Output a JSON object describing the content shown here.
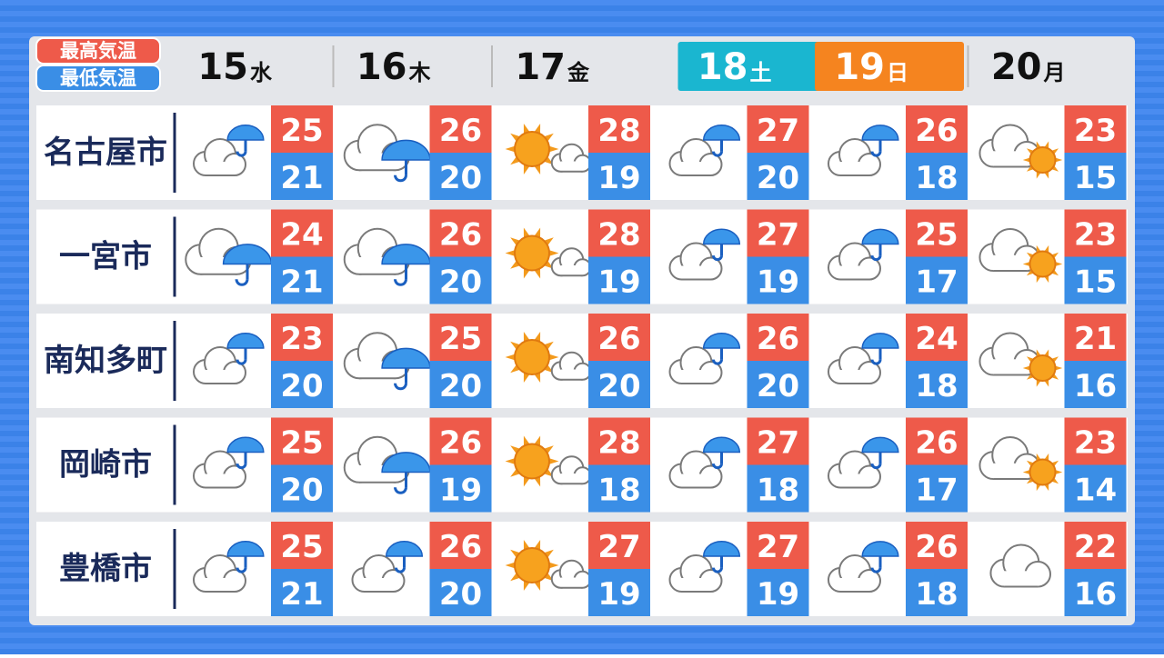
{
  "legend": {
    "high": "最高気温",
    "low": "最低気温"
  },
  "days": [
    {
      "date": "15",
      "weekday": "水"
    },
    {
      "date": "16",
      "weekday": "木"
    },
    {
      "date": "17",
      "weekday": "金"
    },
    {
      "date": "18",
      "weekday": "土"
    },
    {
      "date": "19",
      "weekday": "日"
    },
    {
      "date": "20",
      "weekday": "月"
    }
  ],
  "rows": [
    {
      "city": "名古屋市",
      "high": [
        25,
        26,
        28,
        27,
        26,
        23
      ],
      "low": [
        21,
        20,
        19,
        20,
        18,
        15
      ]
    },
    {
      "city": "一宮市",
      "high": [
        24,
        26,
        28,
        27,
        25,
        23
      ],
      "low": [
        21,
        20,
        19,
        19,
        17,
        15
      ]
    },
    {
      "city": "南知多町",
      "high": [
        23,
        25,
        26,
        26,
        24,
        21
      ],
      "low": [
        20,
        20,
        20,
        20,
        18,
        16
      ]
    },
    {
      "city": "岡崎市",
      "high": [
        25,
        26,
        28,
        27,
        26,
        23
      ],
      "low": [
        20,
        19,
        18,
        18,
        17,
        14
      ]
    },
    {
      "city": "豊橋市",
      "high": [
        25,
        26,
        27,
        27,
        26,
        22
      ],
      "low": [
        21,
        20,
        19,
        19,
        18,
        16
      ]
    }
  ]
}
